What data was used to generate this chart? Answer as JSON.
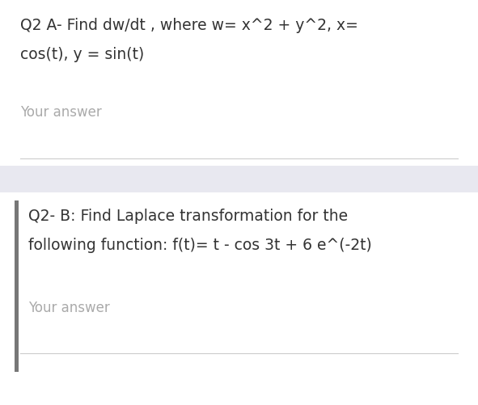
{
  "bg_color": "#ffffff",
  "separator_color": "#e8e8f0",
  "line_color": "#cccccc",
  "left_bar_color": "#777777",
  "q2a_line1": "Q2 A- Find dw/dt , where w= x^2 + y^2, x=",
  "q2a_line2": "cos(t), y = sin(t)",
  "your_answer_1": "Your answer",
  "q2b_line1": "Q2- B: Find Laplace transformation for the",
  "q2b_line2": "following function: f(t)= t - cos 3t + 6 e^(-2t)",
  "your_answer_2": "Your answer",
  "main_font_size": 13.5,
  "answer_font_size": 12.0,
  "fig_width": 5.91,
  "fig_height": 5.01,
  "dpi": 100,
  "text_color": "#333333",
  "answer_color": "#aaaaaa"
}
